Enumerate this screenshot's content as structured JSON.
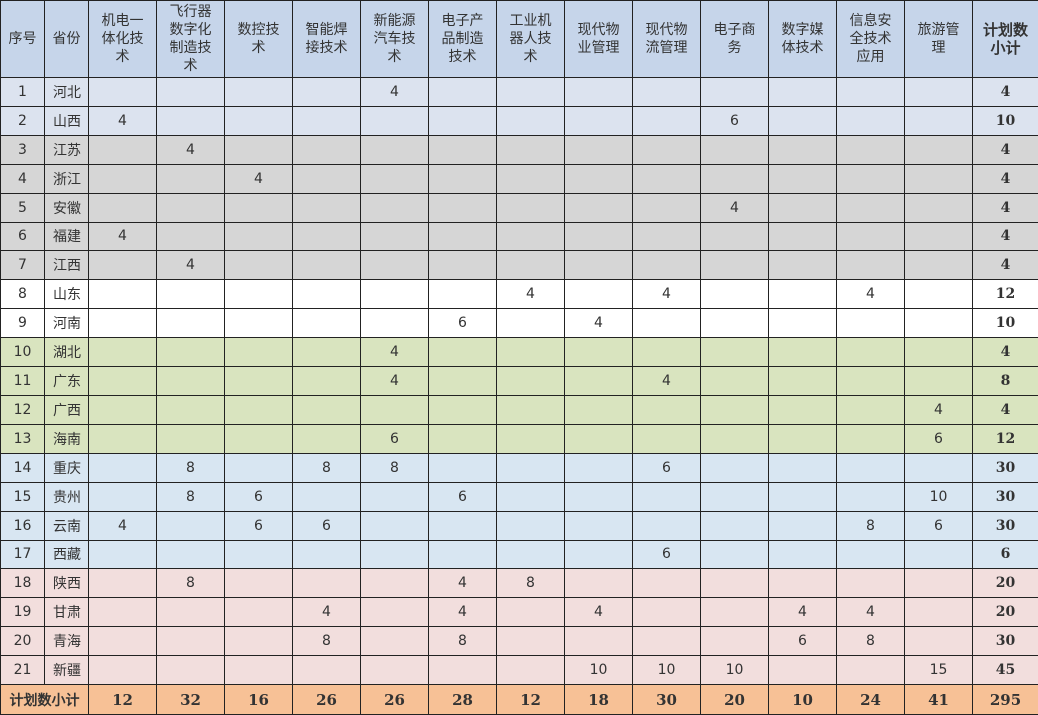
{
  "header": {
    "index": "序号",
    "province": "省份",
    "majors": [
      "机电一体化技术",
      "飞行器数字化制造技术",
      "数控技术",
      "智能焊接技术",
      "新能源汽车技术",
      "电子产品制造技术",
      "工业机器人技术",
      "现代物业管理",
      "现代物流管理",
      "电子商务",
      "数字媒体技术",
      "信息安全技术应用",
      "旅游管理"
    ],
    "total": "计划数小计"
  },
  "row_colors": {
    "a": "#dce3ef",
    "b": "#d6d6d6",
    "c": "#ffffff",
    "d": "#d9e4bf",
    "e": "#d8e6f2",
    "f": "#f2dedd",
    "header": "#c6d5ea",
    "footer": "#f7c196"
  },
  "rows": [
    {
      "no": "1",
      "province": "河北",
      "group": "a",
      "values": [
        "",
        "",
        "",
        "",
        "4",
        "",
        "",
        "",
        "",
        "",
        "",
        "",
        ""
      ],
      "total": "4"
    },
    {
      "no": "2",
      "province": "山西",
      "group": "a",
      "values": [
        "4",
        "",
        "",
        "",
        "",
        "",
        "",
        "",
        "",
        "6",
        "",
        "",
        ""
      ],
      "total": "10"
    },
    {
      "no": "3",
      "province": "江苏",
      "group": "b",
      "values": [
        "",
        "4",
        "",
        "",
        "",
        "",
        "",
        "",
        "",
        "",
        "",
        "",
        ""
      ],
      "total": "4"
    },
    {
      "no": "4",
      "province": "浙江",
      "group": "b",
      "values": [
        "",
        "",
        "4",
        "",
        "",
        "",
        "",
        "",
        "",
        "",
        "",
        "",
        ""
      ],
      "total": "4"
    },
    {
      "no": "5",
      "province": "安徽",
      "group": "b",
      "values": [
        "",
        "",
        "",
        "",
        "",
        "",
        "",
        "",
        "",
        "4",
        "",
        "",
        ""
      ],
      "total": "4"
    },
    {
      "no": "6",
      "province": "福建",
      "group": "b",
      "values": [
        "4",
        "",
        "",
        "",
        "",
        "",
        "",
        "",
        "",
        "",
        "",
        "",
        ""
      ],
      "total": "4"
    },
    {
      "no": "7",
      "province": "江西",
      "group": "b",
      "values": [
        "",
        "4",
        "",
        "",
        "",
        "",
        "",
        "",
        "",
        "",
        "",
        "",
        ""
      ],
      "total": "4"
    },
    {
      "no": "8",
      "province": "山东",
      "group": "c",
      "values": [
        "",
        "",
        "",
        "",
        "",
        "",
        "4",
        "",
        "4",
        "",
        "",
        "4",
        ""
      ],
      "total": "12"
    },
    {
      "no": "9",
      "province": "河南",
      "group": "c",
      "values": [
        "",
        "",
        "",
        "",
        "",
        "6",
        "",
        "4",
        "",
        "",
        "",
        "",
        ""
      ],
      "total": "10"
    },
    {
      "no": "10",
      "province": "湖北",
      "group": "d",
      "values": [
        "",
        "",
        "",
        "",
        "4",
        "",
        "",
        "",
        "",
        "",
        "",
        "",
        ""
      ],
      "total": "4"
    },
    {
      "no": "11",
      "province": "广东",
      "group": "d",
      "values": [
        "",
        "",
        "",
        "",
        "4",
        "",
        "",
        "",
        "4",
        "",
        "",
        "",
        ""
      ],
      "total": "8"
    },
    {
      "no": "12",
      "province": "广西",
      "group": "d",
      "values": [
        "",
        "",
        "",
        "",
        "",
        "",
        "",
        "",
        "",
        "",
        "",
        "",
        "4"
      ],
      "total": "4"
    },
    {
      "no": "13",
      "province": "海南",
      "group": "d",
      "values": [
        "",
        "",
        "",
        "",
        "6",
        "",
        "",
        "",
        "",
        "",
        "",
        "",
        "6"
      ],
      "total": "12"
    },
    {
      "no": "14",
      "province": "重庆",
      "group": "e",
      "values": [
        "",
        "8",
        "",
        "8",
        "8",
        "",
        "",
        "",
        "6",
        "",
        "",
        "",
        ""
      ],
      "total": "30"
    },
    {
      "no": "15",
      "province": "贵州",
      "group": "e",
      "values": [
        "",
        "8",
        "6",
        "",
        "",
        "6",
        "",
        "",
        "",
        "",
        "",
        "",
        "10"
      ],
      "total": "30"
    },
    {
      "no": "16",
      "province": "云南",
      "group": "e",
      "values": [
        "4",
        "",
        "6",
        "6",
        "",
        "",
        "",
        "",
        "",
        "",
        "",
        "8",
        "6"
      ],
      "total": "30"
    },
    {
      "no": "17",
      "province": "西藏",
      "group": "e",
      "values": [
        "",
        "",
        "",
        "",
        "",
        "",
        "",
        "",
        "6",
        "",
        "",
        "",
        ""
      ],
      "total": "6"
    },
    {
      "no": "18",
      "province": "陕西",
      "group": "f",
      "values": [
        "",
        "8",
        "",
        "",
        "",
        "4",
        "8",
        "",
        "",
        "",
        "",
        "",
        ""
      ],
      "total": "20"
    },
    {
      "no": "19",
      "province": "甘肃",
      "group": "f",
      "values": [
        "",
        "",
        "",
        "4",
        "",
        "4",
        "",
        "4",
        "",
        "",
        "4",
        "4",
        ""
      ],
      "total": "20"
    },
    {
      "no": "20",
      "province": "青海",
      "group": "f",
      "values": [
        "",
        "",
        "",
        "8",
        "",
        "8",
        "",
        "",
        "",
        "",
        "6",
        "8",
        ""
      ],
      "total": "30"
    },
    {
      "no": "21",
      "province": "新疆",
      "group": "f",
      "values": [
        "",
        "",
        "",
        "",
        "",
        "",
        "",
        "10",
        "10",
        "10",
        "",
        "",
        "15"
      ],
      "total": "45"
    }
  ],
  "footer": {
    "label": "计划数小计",
    "values": [
      "12",
      "32",
      "16",
      "26",
      "26",
      "28",
      "12",
      "18",
      "30",
      "20",
      "10",
      "24",
      "41"
    ],
    "total": "295"
  }
}
